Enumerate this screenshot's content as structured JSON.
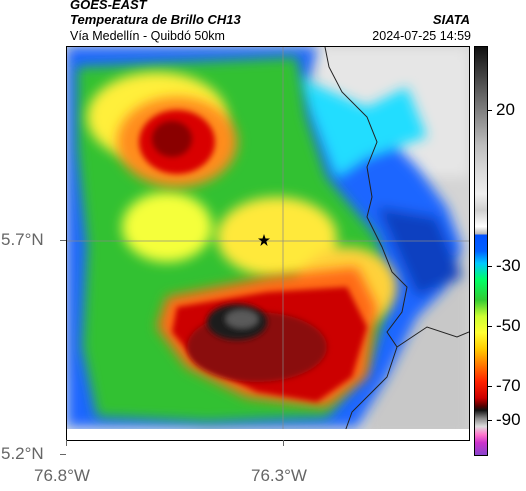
{
  "header": {
    "source": "GOES-EAST",
    "product": "Temperatura de Brillo CH13",
    "location": "Vía Medellín - Quibdó 50km",
    "brand": "SIATA",
    "datetime": "2024-07-25 14:59"
  },
  "map": {
    "lat_labels": [
      "5.7°N",
      "5.2°N"
    ],
    "lon_labels": [
      "76.8°W",
      "76.3°W"
    ],
    "marker_icon": "star-icon"
  },
  "colorbar": {
    "ticks": [
      "20",
      "-30",
      "-50",
      "-70",
      "-90"
    ]
  },
  "colors": {
    "very_cold": "#111111",
    "cold_red": "#c00000",
    "orange": "#ff8c1a",
    "yellow": "#ffff33",
    "green": "#2fc02f",
    "blue": "#0055ff",
    "cyan": "#22ddff",
    "clear_gray": "#cfcfcf"
  }
}
